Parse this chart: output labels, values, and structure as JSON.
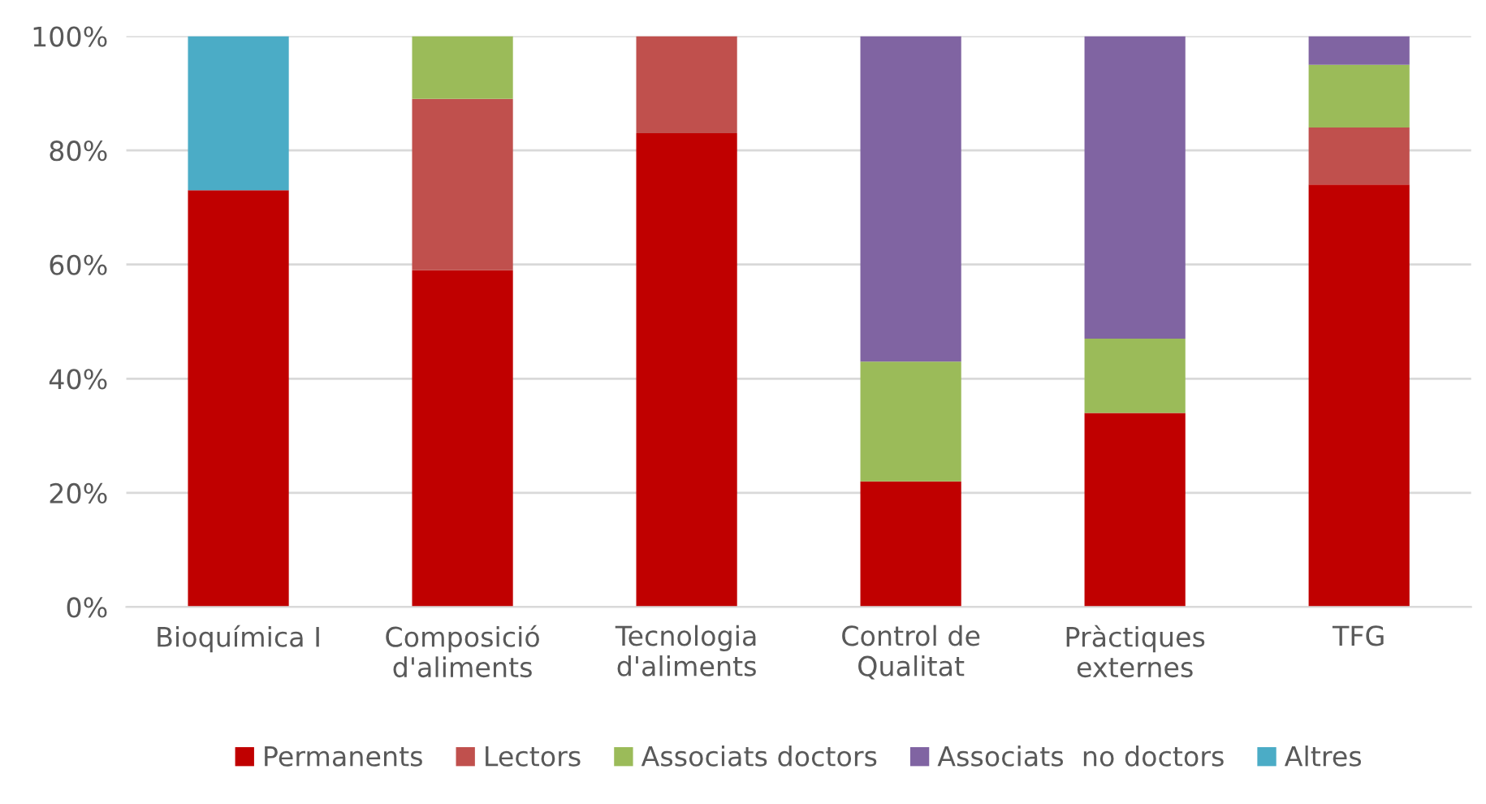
{
  "chart_data": {
    "type": "bar",
    "stacked": true,
    "categories": [
      "Bioquímica I",
      "Composició\nd'aliments",
      "Tecnologia\nd'aliments",
      "Control de\nQualitat",
      "Pràctiques\nexternes",
      "TFG"
    ],
    "series": [
      {
        "name": "Permanents",
        "color": "#c00000",
        "values": [
          73,
          59,
          83,
          22,
          34,
          74
        ]
      },
      {
        "name": "Lectors",
        "color": "#c0504d",
        "values": [
          0,
          30,
          17,
          0,
          0,
          10
        ]
      },
      {
        "name": "Associats doctors",
        "color": "#9bbb59",
        "values": [
          0,
          11,
          0,
          21,
          13,
          11
        ]
      },
      {
        "name": "Associats  no doctors",
        "color": "#8064a2",
        "values": [
          0,
          0,
          0,
          57,
          53,
          5
        ]
      },
      {
        "name": "Altres",
        "color": "#4bacc6",
        "values": [
          27,
          0,
          0,
          0,
          0,
          0
        ]
      }
    ],
    "ylim": [
      0,
      100
    ],
    "yticks": [
      {
        "value": 0,
        "label": "0%"
      },
      {
        "value": 20,
        "label": "20%"
      },
      {
        "value": 40,
        "label": "40%"
      },
      {
        "value": 60,
        "label": "60%"
      },
      {
        "value": 80,
        "label": "80%"
      },
      {
        "value": 100,
        "label": "100%"
      }
    ],
    "grid": "y",
    "legend": "bottom"
  }
}
